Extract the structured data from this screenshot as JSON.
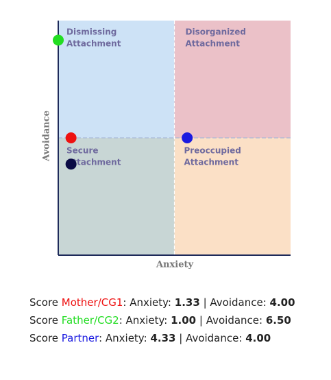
{
  "chart_data": {
    "type": "scatter",
    "x_label": "Anxiety",
    "y_label": "Avoidance",
    "xlim": [
      1,
      7
    ],
    "ylim": [
      1,
      7
    ],
    "x_divider": 4,
    "y_divider": 4,
    "quadrants": [
      {
        "label": [
          "Dismissing",
          "Attachment"
        ],
        "color": "#cde2f6"
      },
      {
        "label": [
          "Disorganized",
          "Attachment"
        ],
        "color": "#ebc1c8"
      },
      {
        "label": [
          "Secure",
          "Attachment"
        ],
        "color": "#c8d6d5"
      },
      {
        "label": [
          "Preoccupied",
          "Attachment"
        ],
        "color": "#fbe0c6"
      }
    ],
    "series": [
      {
        "name": "Mother/CG1",
        "color": "#ee1111",
        "x": [
          1.33
        ],
        "values": [
          4.0
        ],
        "x_labels": [
          "1.33"
        ],
        "value_labels": [
          "4.00"
        ]
      },
      {
        "name": "Father/CG2",
        "color": "#22dd22",
        "x": [
          1.0
        ],
        "values": [
          6.5
        ],
        "x_labels": [
          "1.00"
        ],
        "value_labels": [
          "6.50"
        ]
      },
      {
        "name": "Partner",
        "color": "#1a1ae0",
        "x": [
          4.33
        ],
        "values": [
          4.0
        ],
        "x_labels": [
          "4.33"
        ],
        "value_labels": [
          "4.00"
        ]
      },
      {
        "name": null,
        "color": "#0b0b45",
        "x": [
          1.33
        ],
        "values": [
          3.33
        ]
      }
    ],
    "score_word": "Score",
    "score_x_text": ": Anxiety:",
    "score_y_text": "| Avoidance:"
  }
}
